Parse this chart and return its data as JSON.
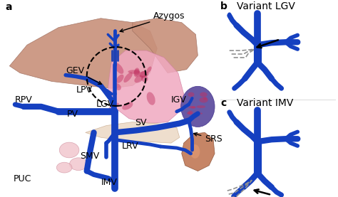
{
  "bg_color": "#ffffff",
  "blue_vessel": "#1540c0",
  "blue_light": "#5070d8",
  "liver_color": "#c8907a",
  "liver_edge": "#a07060",
  "stomach_color": "#f0a0b0",
  "spleen_color": "#6050a0",
  "kidney_color": "#b07060",
  "pancreas_color": "#e8d0b8",
  "label_a": "a",
  "label_b": "b",
  "label_c": "c",
  "variant_b": "Variant LGV",
  "variant_c": "Variant IMV",
  "font_label": 9,
  "font_panel": 10
}
